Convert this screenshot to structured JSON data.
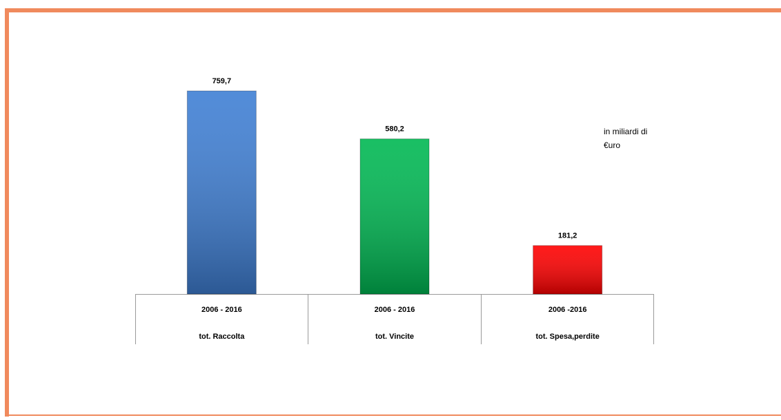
{
  "chart_data": {
    "type": "bar",
    "categories": [
      "tot. Raccolta",
      "tot. Vincite",
      "tot. Spesa,perdite"
    ],
    "periods": [
      "2006 - 2016",
      "2006 - 2016",
      "2006 -2016"
    ],
    "values": [
      759.7,
      580.2,
      181.2
    ],
    "value_labels": [
      "759,7",
      "580,2",
      "181,2"
    ],
    "colors": [
      "#3f7fd4",
      "#00b853",
      "#ff0000"
    ],
    "annotation": [
      "in miliardi di",
      "€uro"
    ]
  }
}
